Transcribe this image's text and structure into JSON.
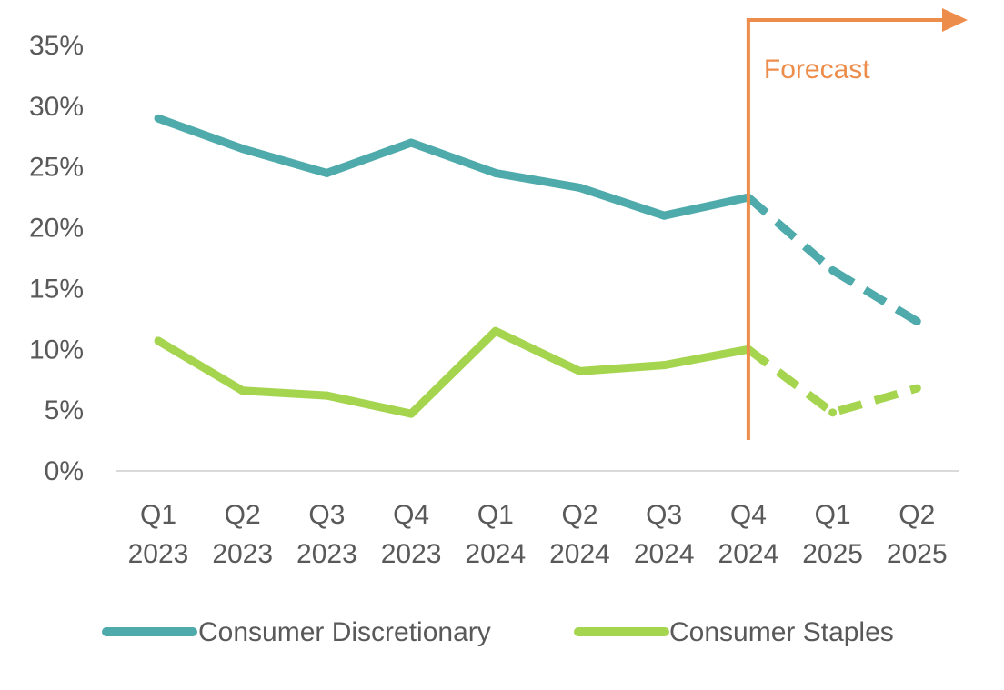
{
  "chart_data": {
    "type": "line",
    "title": "",
    "xlabel": "",
    "ylabel": "",
    "categories": [
      [
        "Q1",
        "2023"
      ],
      [
        "Q2",
        "2023"
      ],
      [
        "Q3",
        "2023"
      ],
      [
        "Q4",
        "2023"
      ],
      [
        "Q1",
        "2024"
      ],
      [
        "Q2",
        "2024"
      ],
      [
        "Q3",
        "2024"
      ],
      [
        "Q4",
        "2024"
      ],
      [
        "Q1",
        "2025"
      ],
      [
        "Q2",
        "2025"
      ]
    ],
    "series": [
      {
        "name": "Consumer Discretionary",
        "color": "#4fabab",
        "values": [
          0.29,
          0.265,
          0.245,
          0.27,
          0.245,
          0.233,
          0.21,
          0.225,
          0.165,
          0.123
        ]
      },
      {
        "name": "Consumer Staples",
        "color": "#a5d44e",
        "values": [
          0.107,
          0.066,
          0.062,
          0.047,
          0.115,
          0.082,
          0.087,
          0.1,
          0.048,
          0.068
        ]
      }
    ],
    "forecast_start_index": 7,
    "ylim": [
      0,
      0.35
    ],
    "yticks": [
      {
        "value": 0.35,
        "label": "35%"
      },
      {
        "value": 0.3,
        "label": "30%"
      },
      {
        "value": 0.25,
        "label": "25%"
      },
      {
        "value": 0.2,
        "label": "20%"
      },
      {
        "value": 0.15,
        "label": "15%"
      },
      {
        "value": 0.1,
        "label": "10%"
      },
      {
        "value": 0.05,
        "label": "5%"
      },
      {
        "value": 0.0,
        "label": "0%"
      }
    ],
    "grid": false,
    "legend": "bottom",
    "annotation": {
      "text": "Forecast",
      "color": "#ed8d4c",
      "at_index": 7
    }
  }
}
